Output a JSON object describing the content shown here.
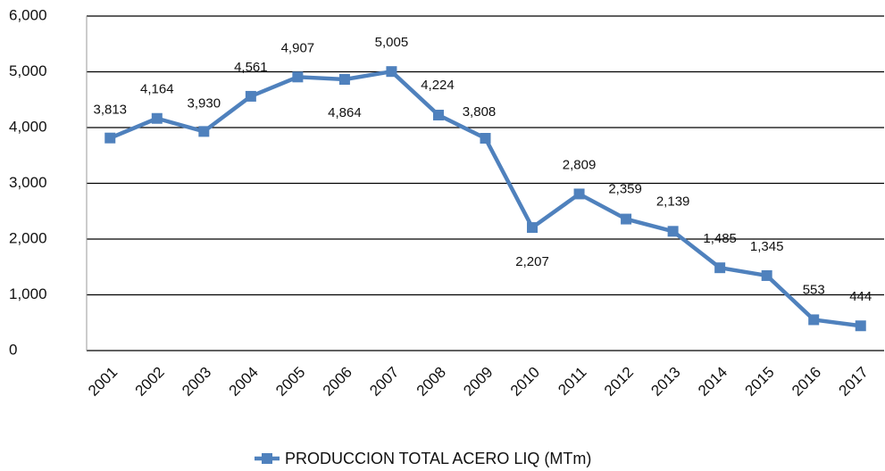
{
  "chart_data": {
    "type": "line",
    "categories": [
      "2001",
      "2002",
      "2003",
      "2004",
      "2005",
      "2006",
      "2007",
      "2008",
      "2009",
      "2010",
      "2011",
      "2012",
      "2013",
      "2014",
      "2015",
      "2016",
      "2017"
    ],
    "series": [
      {
        "name": "PRODUCCION TOTAL ACERO LIQ (MTm)",
        "color": "#4f81bd",
        "values": [
          3813,
          4164,
          3930,
          4561,
          4907,
          4864,
          5005,
          4224,
          3808,
          2207,
          2809,
          2359,
          2139,
          1485,
          1345,
          553,
          444
        ],
        "value_labels": [
          "3,813",
          "4,164",
          "3,930",
          "4,561",
          "4,907",
          "4,864",
          "5,005",
          "4,224",
          "3,808",
          "2,207",
          "2,809",
          "2,359",
          "2,139",
          "1,485",
          "1,345",
          "553",
          "444"
        ]
      }
    ],
    "ylim": [
      0,
      6000
    ],
    "yticks": [
      0,
      {
        "value": 1000,
        "label": "1,000"
      },
      {
        "value": 2000,
        "label": "2,000"
      },
      {
        "value": 3000,
        "label": "3,000"
      },
      {
        "value": 4000,
        "label": "4,000"
      },
      {
        "value": 5000,
        "label": "5,000"
      },
      {
        "value": 6000,
        "label": "6,000"
      }
    ],
    "grid": true,
    "legend": "bottom"
  }
}
